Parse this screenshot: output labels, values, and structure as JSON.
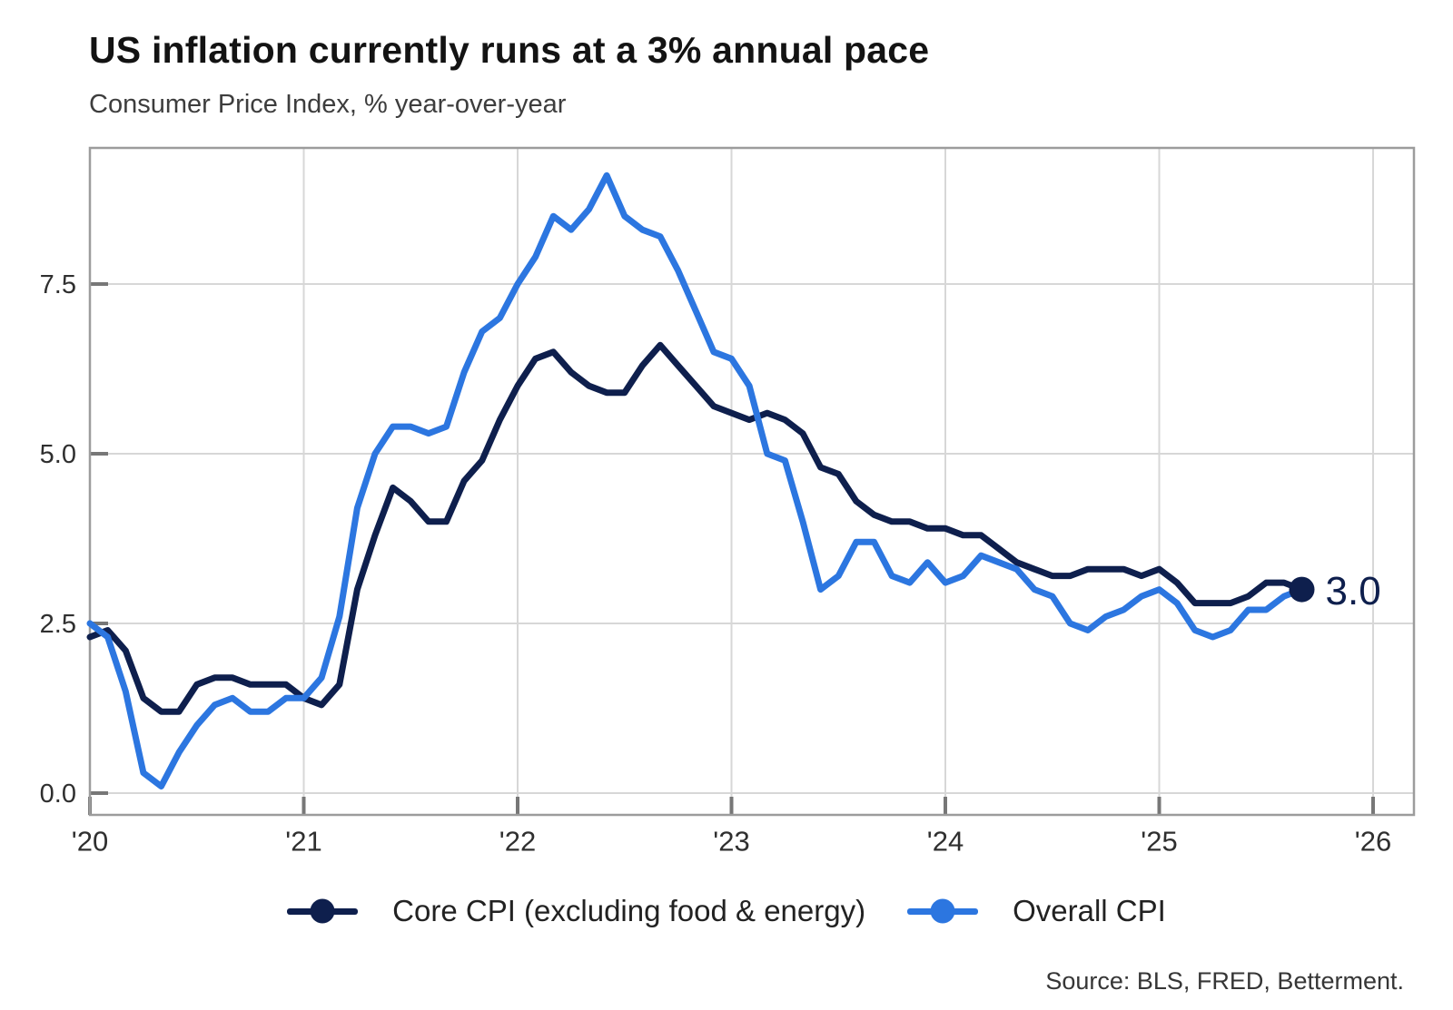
{
  "header": {
    "title": "US inflation currently runs at a 3% annual pace",
    "subtitle": "Consumer Price Index, % year-over-year"
  },
  "chart_data": {
    "type": "line",
    "title": "US inflation currently runs at a 3% annual pace",
    "subtitle": "Consumer Price Index, % year-over-year",
    "x_unit": "month",
    "x_start": "2020-01",
    "x_end": "2025-09",
    "x_tick_labels": [
      "'20",
      "'21",
      "'22",
      "'23",
      "'24",
      "'25",
      "'26"
    ],
    "y_ticks": [
      0,
      2.5,
      5,
      7.5
    ],
    "y_tick_labels": [
      "0.0",
      "2.5",
      "5.0",
      "7.5"
    ],
    "ylim": [
      -0.32,
      9.5
    ],
    "xlim_years": [
      2020,
      2026.2
    ],
    "grid": true,
    "legend_position": "bottom",
    "end_label": "3.0",
    "series": [
      {
        "name": "Core CPI (excluding food & energy)",
        "color": "#0e1f4d",
        "values": [
          2.3,
          2.4,
          2.1,
          1.4,
          1.2,
          1.2,
          1.6,
          1.7,
          1.7,
          1.6,
          1.6,
          1.6,
          1.4,
          1.3,
          1.6,
          3.0,
          3.8,
          4.5,
          4.3,
          4.0,
          4.0,
          4.6,
          4.9,
          5.5,
          6.0,
          6.4,
          6.5,
          6.2,
          6.0,
          5.9,
          5.9,
          6.3,
          6.6,
          6.3,
          6.0,
          5.7,
          5.6,
          5.5,
          5.6,
          5.5,
          5.3,
          4.8,
          4.7,
          4.3,
          4.1,
          4.0,
          4.0,
          3.9,
          3.9,
          3.8,
          3.8,
          3.6,
          3.4,
          3.3,
          3.2,
          3.2,
          3.3,
          3.3,
          3.3,
          3.2,
          3.3,
          3.1,
          2.8,
          2.8,
          2.8,
          2.9,
          3.1,
          3.1,
          3.0
        ]
      },
      {
        "name": "Overall CPI",
        "color": "#2c76e0",
        "values": [
          2.5,
          2.3,
          1.5,
          0.3,
          0.1,
          0.6,
          1.0,
          1.3,
          1.4,
          1.2,
          1.2,
          1.4,
          1.4,
          1.7,
          2.6,
          4.2,
          5.0,
          5.4,
          5.4,
          5.3,
          5.4,
          6.2,
          6.8,
          7.0,
          7.5,
          7.9,
          8.5,
          8.3,
          8.6,
          9.1,
          8.5,
          8.3,
          8.2,
          7.7,
          7.1,
          6.5,
          6.4,
          6.0,
          5.0,
          4.9,
          4.0,
          3.0,
          3.2,
          3.7,
          3.7,
          3.2,
          3.1,
          3.4,
          3.1,
          3.2,
          3.5,
          3.4,
          3.3,
          3.0,
          2.9,
          2.5,
          2.4,
          2.6,
          2.7,
          2.9,
          3.0,
          2.8,
          2.4,
          2.3,
          2.4,
          2.7,
          2.7,
          2.9,
          3.0
        ]
      }
    ],
    "colors": {
      "grid": "#d7d7d7",
      "border": "#9c9c9c",
      "tick": "#777777",
      "axis_text": "#2f2f2f"
    }
  },
  "legend": {
    "items": [
      {
        "label": "Core CPI (excluding food & energy)",
        "color": "#0e1f4d"
      },
      {
        "label": "Overall CPI",
        "color": "#2c76e0"
      }
    ]
  },
  "footer": {
    "source": "Source: BLS, FRED, Betterment."
  }
}
